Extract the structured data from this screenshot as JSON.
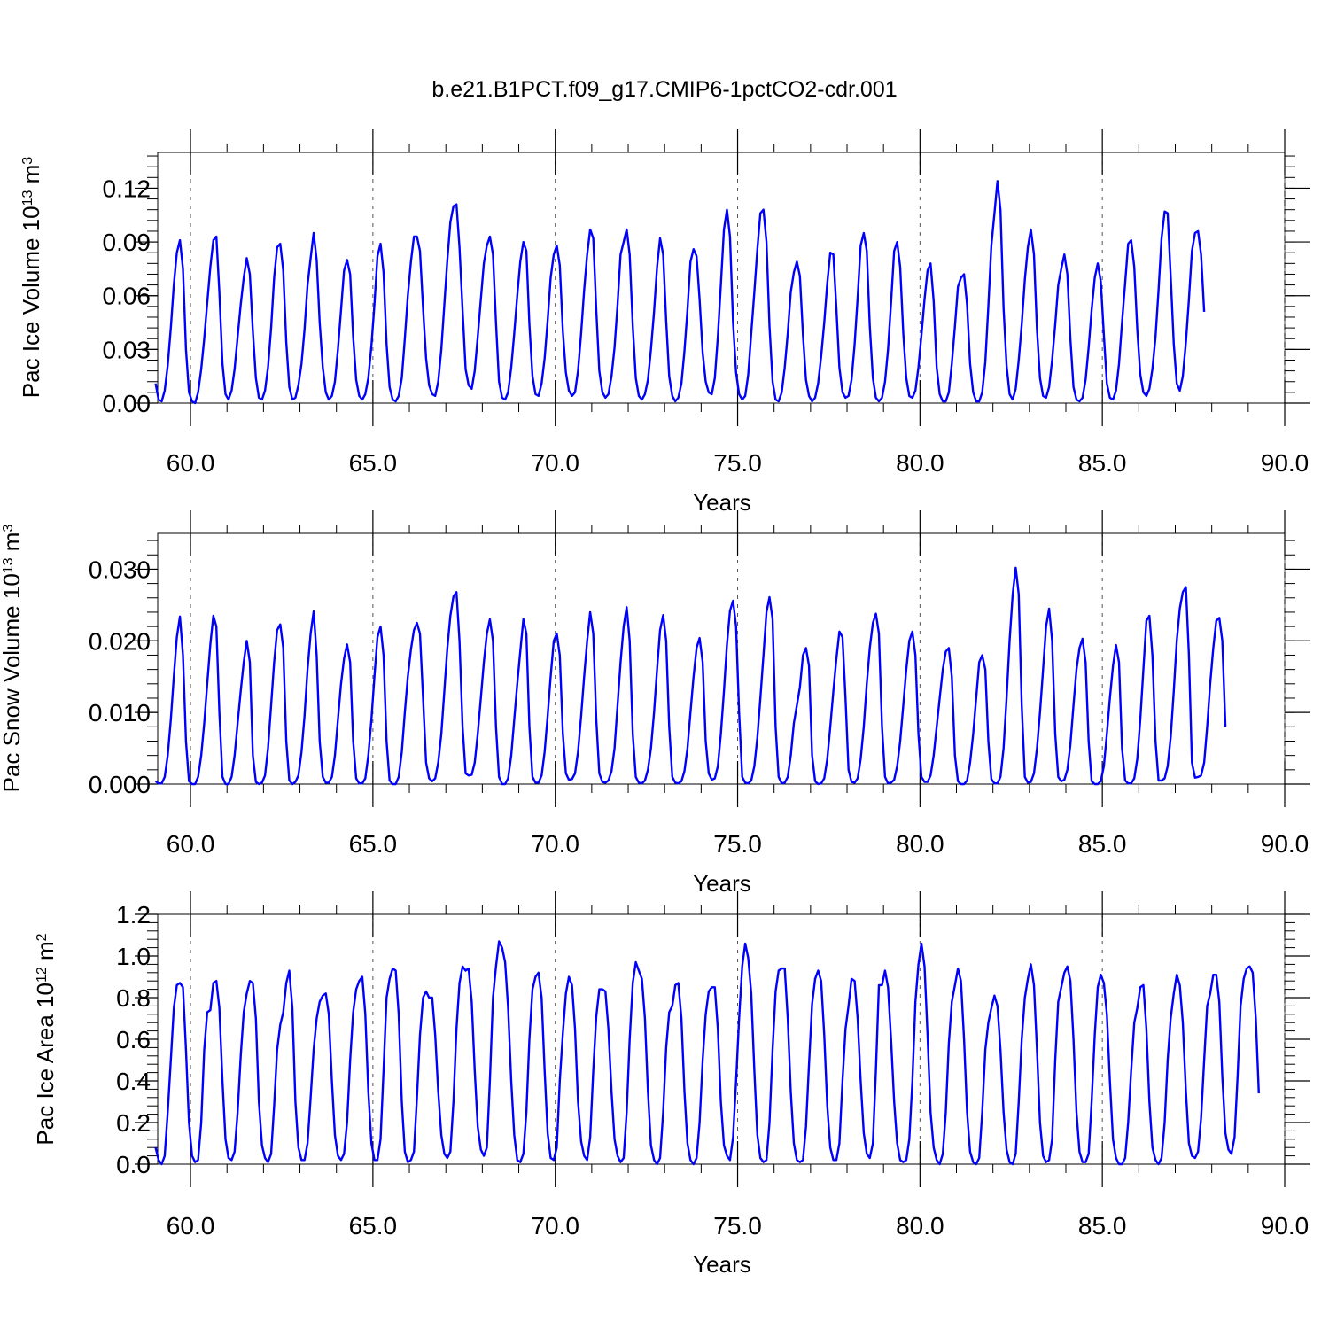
{
  "title": "b.e21.B1PCT.f09_g17.CMIP6-1pctCO2-cdr.001",
  "line_color": "#0000ff",
  "chart_data": [
    {
      "type": "line",
      "series_name": "",
      "xlabel": "Years",
      "ylabel_main": "Pac Ice Volume 10",
      "ylabel_exp": "13",
      "ylabel_unit": " m",
      "ylabel_unit_exp": "3",
      "xlim": [
        59.1,
        90.0
      ],
      "ylim": [
        0.0,
        0.14
      ],
      "xticks": [
        "60.0",
        "65.0",
        "70.0",
        "75.0",
        "80.0",
        "85.0",
        "90.0"
      ],
      "yticks": [
        "0.00",
        "0.03",
        "0.06",
        "0.09",
        "0.12"
      ],
      "ytick_values": [
        0.0,
        0.03,
        0.06,
        0.09,
        0.12
      ],
      "grid": "dashed vertical at major x ticks",
      "start_year": 59.042,
      "x_step_years": 0.08333,
      "values": [
        0.011,
        0.002,
        0.001,
        0.007,
        0.021,
        0.042,
        0.066,
        0.084,
        0.091,
        0.075,
        0.03,
        0.006,
        0.001,
        0.0,
        0.006,
        0.019,
        0.036,
        0.056,
        0.076,
        0.091,
        0.093,
        0.062,
        0.022,
        0.005,
        0.002,
        0.007,
        0.019,
        0.037,
        0.055,
        0.07,
        0.081,
        0.072,
        0.04,
        0.014,
        0.003,
        0.002,
        0.007,
        0.02,
        0.042,
        0.07,
        0.087,
        0.089,
        0.074,
        0.034,
        0.009,
        0.002,
        0.003,
        0.01,
        0.022,
        0.041,
        0.066,
        0.081,
        0.095,
        0.08,
        0.045,
        0.02,
        0.006,
        0.002,
        0.004,
        0.012,
        0.03,
        0.052,
        0.074,
        0.08,
        0.072,
        0.037,
        0.013,
        0.004,
        0.002,
        0.005,
        0.014,
        0.032,
        0.055,
        0.082,
        0.089,
        0.073,
        0.033,
        0.009,
        0.002,
        0.001,
        0.004,
        0.014,
        0.036,
        0.06,
        0.079,
        0.093,
        0.093,
        0.085,
        0.053,
        0.025,
        0.01,
        0.005,
        0.004,
        0.012,
        0.03,
        0.055,
        0.08,
        0.101,
        0.11,
        0.111,
        0.087,
        0.052,
        0.019,
        0.01,
        0.008,
        0.018,
        0.037,
        0.058,
        0.078,
        0.088,
        0.093,
        0.083,
        0.045,
        0.012,
        0.003,
        0.002,
        0.006,
        0.02,
        0.039,
        0.06,
        0.079,
        0.09,
        0.085,
        0.044,
        0.015,
        0.005,
        0.004,
        0.011,
        0.025,
        0.046,
        0.07,
        0.083,
        0.088,
        0.077,
        0.04,
        0.017,
        0.007,
        0.004,
        0.006,
        0.018,
        0.039,
        0.063,
        0.083,
        0.097,
        0.092,
        0.052,
        0.018,
        0.006,
        0.003,
        0.005,
        0.015,
        0.031,
        0.055,
        0.083,
        0.09,
        0.097,
        0.083,
        0.043,
        0.014,
        0.004,
        0.002,
        0.005,
        0.013,
        0.03,
        0.051,
        0.076,
        0.092,
        0.083,
        0.046,
        0.015,
        0.004,
        0.001,
        0.003,
        0.011,
        0.029,
        0.052,
        0.079,
        0.086,
        0.082,
        0.058,
        0.028,
        0.012,
        0.006,
        0.005,
        0.014,
        0.037,
        0.066,
        0.097,
        0.108,
        0.093,
        0.045,
        0.017,
        0.005,
        0.002,
        0.004,
        0.016,
        0.039,
        0.062,
        0.086,
        0.106,
        0.108,
        0.09,
        0.043,
        0.012,
        0.002,
        0.001,
        0.006,
        0.02,
        0.039,
        0.062,
        0.073,
        0.079,
        0.071,
        0.038,
        0.013,
        0.004,
        0.001,
        0.003,
        0.011,
        0.026,
        0.045,
        0.067,
        0.084,
        0.083,
        0.053,
        0.02,
        0.006,
        0.003,
        0.004,
        0.013,
        0.033,
        0.059,
        0.088,
        0.095,
        0.085,
        0.043,
        0.014,
        0.003,
        0.001,
        0.003,
        0.012,
        0.03,
        0.056,
        0.085,
        0.09,
        0.076,
        0.039,
        0.014,
        0.004,
        0.003,
        0.007,
        0.02,
        0.038,
        0.058,
        0.074,
        0.078,
        0.057,
        0.02,
        0.005,
        0.001,
        0.001,
        0.006,
        0.022,
        0.043,
        0.065,
        0.07,
        0.072,
        0.055,
        0.022,
        0.006,
        0.001,
        0.001,
        0.006,
        0.023,
        0.054,
        0.088,
        0.106,
        0.124,
        0.108,
        0.053,
        0.021,
        0.005,
        0.002,
        0.008,
        0.024,
        0.044,
        0.069,
        0.087,
        0.097,
        0.083,
        0.041,
        0.014,
        0.004,
        0.003,
        0.009,
        0.024,
        0.044,
        0.066,
        0.075,
        0.083,
        0.072,
        0.036,
        0.009,
        0.002,
        0.001,
        0.003,
        0.013,
        0.031,
        0.052,
        0.07,
        0.078,
        0.068,
        0.038,
        0.011,
        0.003,
        0.002,
        0.007,
        0.022,
        0.045,
        0.067,
        0.089,
        0.091,
        0.076,
        0.041,
        0.016,
        0.006,
        0.004,
        0.008,
        0.019,
        0.037,
        0.063,
        0.092,
        0.107,
        0.106,
        0.071,
        0.033,
        0.011,
        0.007,
        0.015,
        0.034,
        0.058,
        0.085,
        0.095,
        0.096,
        0.083,
        0.051
      ]
    },
    {
      "type": "line",
      "series_name": "",
      "xlabel": "Years",
      "ylabel_main": "Pac Snow Volume 10",
      "ylabel_exp": "13",
      "ylabel_unit": " m",
      "ylabel_unit_exp": "3",
      "xlim": [
        59.1,
        90.0
      ],
      "ylim": [
        0.0,
        0.035
      ],
      "xticks": [
        "60.0",
        "65.0",
        "70.0",
        "75.0",
        "80.0",
        "85.0",
        "90.0"
      ],
      "yticks": [
        "0.000",
        "0.010",
        "0.020",
        "0.030"
      ],
      "ytick_values": [
        0.0,
        0.01,
        0.02,
        0.03
      ],
      "grid": "dashed vertical at major x ticks",
      "start_year": 59.042,
      "x_step_years": 0.08333,
      "values": [
        0.0004,
        0.0001,
        0.0001,
        0.001,
        0.004,
        0.009,
        0.015,
        0.0205,
        0.0234,
        0.018,
        0.006,
        0.0004,
        0.0,
        0.0,
        0.001,
        0.004,
        0.0085,
        0.014,
        0.0195,
        0.0235,
        0.022,
        0.01,
        0.001,
        0.0,
        0.0,
        0.001,
        0.004,
        0.0085,
        0.013,
        0.017,
        0.02,
        0.017,
        0.004,
        0.0003,
        0.0,
        0.0002,
        0.0012,
        0.005,
        0.011,
        0.017,
        0.0215,
        0.0223,
        0.019,
        0.006,
        0.0005,
        0.0,
        0.0003,
        0.0012,
        0.0045,
        0.0095,
        0.016,
        0.021,
        0.0241,
        0.018,
        0.006,
        0.001,
        0.0002,
        0.0002,
        0.001,
        0.004,
        0.009,
        0.014,
        0.0175,
        0.0195,
        0.017,
        0.006,
        0.0008,
        0.0001,
        0.0001,
        0.0008,
        0.004,
        0.009,
        0.015,
        0.0205,
        0.022,
        0.018,
        0.006,
        0.0005,
        0.0,
        0.0,
        0.001,
        0.0045,
        0.01,
        0.015,
        0.0188,
        0.0215,
        0.0225,
        0.021,
        0.012,
        0.003,
        0.0008,
        0.0004,
        0.0008,
        0.003,
        0.007,
        0.013,
        0.019,
        0.0235,
        0.0262,
        0.0268,
        0.02,
        0.008,
        0.0015,
        0.0012,
        0.0013,
        0.003,
        0.007,
        0.012,
        0.017,
        0.021,
        0.023,
        0.02,
        0.008,
        0.001,
        0.0,
        0.0,
        0.0008,
        0.004,
        0.009,
        0.014,
        0.0185,
        0.023,
        0.021,
        0.008,
        0.001,
        0.0002,
        0.0002,
        0.0012,
        0.0045,
        0.0095,
        0.015,
        0.02,
        0.021,
        0.018,
        0.007,
        0.0015,
        0.0006,
        0.0007,
        0.0015,
        0.0045,
        0.0095,
        0.015,
        0.02,
        0.024,
        0.021,
        0.009,
        0.0015,
        0.0003,
        0.0002,
        0.0005,
        0.0018,
        0.005,
        0.011,
        0.017,
        0.022,
        0.0247,
        0.02,
        0.007,
        0.001,
        0.0002,
        0.0001,
        0.0005,
        0.002,
        0.005,
        0.01,
        0.016,
        0.0215,
        0.0236,
        0.02,
        0.008,
        0.001,
        0.0002,
        0.0001,
        0.0004,
        0.0018,
        0.005,
        0.01,
        0.015,
        0.019,
        0.0204,
        0.017,
        0.006,
        0.0015,
        0.0006,
        0.0008,
        0.0025,
        0.007,
        0.013,
        0.0195,
        0.0242,
        0.0256,
        0.022,
        0.01,
        0.001,
        0.0002,
        0.0001,
        0.0005,
        0.0025,
        0.0065,
        0.012,
        0.018,
        0.024,
        0.0261,
        0.023,
        0.008,
        0.001,
        0.0001,
        0.0002,
        0.001,
        0.004,
        0.0085,
        0.011,
        0.0135,
        0.018,
        0.019,
        0.0165,
        0.004,
        0.0004,
        0.0,
        0.0001,
        0.0008,
        0.0035,
        0.008,
        0.013,
        0.0175,
        0.0213,
        0.0205,
        0.012,
        0.002,
        0.0003,
        0.0002,
        0.0008,
        0.0035,
        0.008,
        0.014,
        0.019,
        0.0225,
        0.0238,
        0.021,
        0.008,
        0.001,
        0.0001,
        0.0002,
        0.0006,
        0.0025,
        0.006,
        0.011,
        0.016,
        0.02,
        0.0213,
        0.018,
        0.007,
        0.001,
        0.0003,
        0.0003,
        0.0012,
        0.004,
        0.008,
        0.012,
        0.016,
        0.0185,
        0.019,
        0.015,
        0.004,
        0.0004,
        0.0,
        0.0,
        0.0005,
        0.003,
        0.007,
        0.012,
        0.017,
        0.018,
        0.016,
        0.006,
        0.0007,
        0.0001,
        0.0001,
        0.001,
        0.005,
        0.012,
        0.02,
        0.0265,
        0.0302,
        0.0265,
        0.011,
        0.001,
        0.0002,
        0.0003,
        0.0015,
        0.005,
        0.01,
        0.016,
        0.022,
        0.0245,
        0.02,
        0.007,
        0.001,
        0.0004,
        0.0006,
        0.002,
        0.0055,
        0.011,
        0.016,
        0.019,
        0.0203,
        0.017,
        0.006,
        0.0004,
        0.0,
        0.0,
        0.0004,
        0.0025,
        0.007,
        0.012,
        0.0165,
        0.0194,
        0.017,
        0.005,
        0.0005,
        0.0001,
        0.0001,
        0.0008,
        0.0035,
        0.009,
        0.016,
        0.0228,
        0.0235,
        0.018,
        0.006,
        0.0005,
        0.0005,
        0.0008,
        0.0025,
        0.0065,
        0.013,
        0.02,
        0.0245,
        0.0268,
        0.0275,
        0.018,
        0.003,
        0.0009,
        0.001,
        0.0012,
        0.003,
        0.008,
        0.014,
        0.019,
        0.0228,
        0.0232,
        0.02,
        0.008
      ]
    },
    {
      "type": "line",
      "series_name": "",
      "xlabel": "Years",
      "ylabel_main": "Pac Ice Area 10",
      "ylabel_exp": "12",
      "ylabel_unit": " m",
      "ylabel_unit_exp": "2",
      "xlim": [
        59.1,
        90.0
      ],
      "ylim": [
        0.0,
        1.2
      ],
      "xticks": [
        "60.0",
        "65.0",
        "70.0",
        "75.0",
        "80.0",
        "85.0",
        "90.0"
      ],
      "yticks": [
        "0.0",
        "0.2",
        "0.4",
        "0.6",
        "0.8",
        "1.0",
        "1.2"
      ],
      "ytick_values": [
        0.0,
        0.2,
        0.4,
        0.6,
        0.8,
        1.0,
        1.2
      ],
      "grid": "dashed vertical at major x ticks",
      "start_year": 59.042,
      "x_step_years": 0.08333,
      "values": [
        0.08,
        0.02,
        0.0,
        0.04,
        0.25,
        0.5,
        0.75,
        0.86,
        0.87,
        0.85,
        0.55,
        0.2,
        0.04,
        0.01,
        0.02,
        0.2,
        0.55,
        0.73,
        0.74,
        0.87,
        0.88,
        0.75,
        0.4,
        0.12,
        0.03,
        0.02,
        0.06,
        0.25,
        0.52,
        0.73,
        0.82,
        0.88,
        0.87,
        0.7,
        0.3,
        0.09,
        0.03,
        0.01,
        0.05,
        0.28,
        0.55,
        0.67,
        0.73,
        0.87,
        0.93,
        0.75,
        0.3,
        0.08,
        0.02,
        0.02,
        0.1,
        0.32,
        0.55,
        0.7,
        0.78,
        0.81,
        0.82,
        0.72,
        0.4,
        0.14,
        0.04,
        0.02,
        0.05,
        0.2,
        0.5,
        0.73,
        0.84,
        0.88,
        0.9,
        0.72,
        0.35,
        0.1,
        0.02,
        0.02,
        0.12,
        0.45,
        0.8,
        0.89,
        0.94,
        0.93,
        0.72,
        0.3,
        0.06,
        0.01,
        0.02,
        0.06,
        0.32,
        0.62,
        0.8,
        0.83,
        0.8,
        0.8,
        0.62,
        0.35,
        0.14,
        0.05,
        0.03,
        0.06,
        0.3,
        0.65,
        0.87,
        0.95,
        0.93,
        0.94,
        0.78,
        0.45,
        0.18,
        0.07,
        0.04,
        0.08,
        0.4,
        0.8,
        0.95,
        1.07,
        1.04,
        0.97,
        0.75,
        0.4,
        0.14,
        0.02,
        0.01,
        0.05,
        0.25,
        0.6,
        0.84,
        0.9,
        0.92,
        0.8,
        0.45,
        0.15,
        0.03,
        0.02,
        0.08,
        0.4,
        0.63,
        0.82,
        0.9,
        0.86,
        0.65,
        0.3,
        0.11,
        0.04,
        0.02,
        0.13,
        0.45,
        0.71,
        0.84,
        0.84,
        0.83,
        0.65,
        0.35,
        0.12,
        0.04,
        0.01,
        0.03,
        0.25,
        0.6,
        0.87,
        0.97,
        0.93,
        0.89,
        0.7,
        0.35,
        0.09,
        0.02,
        0.0,
        0.03,
        0.25,
        0.56,
        0.73,
        0.76,
        0.86,
        0.87,
        0.7,
        0.35,
        0.1,
        0.02,
        0.0,
        0.03,
        0.2,
        0.5,
        0.72,
        0.83,
        0.85,
        0.85,
        0.65,
        0.3,
        0.09,
        0.04,
        0.02,
        0.13,
        0.4,
        0.7,
        0.95,
        1.06,
        0.99,
        0.82,
        0.45,
        0.14,
        0.03,
        0.01,
        0.02,
        0.2,
        0.55,
        0.83,
        0.93,
        0.94,
        0.94,
        0.7,
        0.35,
        0.1,
        0.02,
        0.01,
        0.02,
        0.18,
        0.48,
        0.77,
        0.89,
        0.93,
        0.88,
        0.62,
        0.28,
        0.08,
        0.02,
        0.02,
        0.1,
        0.4,
        0.65,
        0.76,
        0.89,
        0.88,
        0.7,
        0.4,
        0.15,
        0.05,
        0.03,
        0.1,
        0.45,
        0.86,
        0.86,
        0.93,
        0.85,
        0.6,
        0.3,
        0.1,
        0.02,
        0.01,
        0.02,
        0.12,
        0.4,
        0.78,
        0.96,
        1.06,
        0.95,
        0.62,
        0.25,
        0.08,
        0.02,
        0.0,
        0.05,
        0.25,
        0.58,
        0.78,
        0.86,
        0.94,
        0.88,
        0.6,
        0.25,
        0.06,
        0.01,
        0.0,
        0.03,
        0.25,
        0.55,
        0.68,
        0.75,
        0.81,
        0.76,
        0.55,
        0.25,
        0.07,
        0.01,
        0.0,
        0.05,
        0.3,
        0.6,
        0.8,
        0.89,
        0.96,
        0.86,
        0.55,
        0.2,
        0.04,
        0.01,
        0.02,
        0.12,
        0.5,
        0.78,
        0.85,
        0.92,
        0.95,
        0.88,
        0.6,
        0.25,
        0.06,
        0.01,
        0.01,
        0.05,
        0.3,
        0.62,
        0.85,
        0.91,
        0.87,
        0.72,
        0.4,
        0.12,
        0.03,
        0.0,
        0.0,
        0.03,
        0.2,
        0.45,
        0.68,
        0.75,
        0.85,
        0.86,
        0.65,
        0.3,
        0.08,
        0.02,
        0.0,
        0.03,
        0.2,
        0.5,
        0.7,
        0.82,
        0.91,
        0.86,
        0.68,
        0.35,
        0.1,
        0.04,
        0.03,
        0.06,
        0.22,
        0.5,
        0.76,
        0.82,
        0.91,
        0.91,
        0.78,
        0.42,
        0.15,
        0.07,
        0.05,
        0.13,
        0.42,
        0.76,
        0.89,
        0.94,
        0.95,
        0.92,
        0.7,
        0.34
      ]
    }
  ]
}
